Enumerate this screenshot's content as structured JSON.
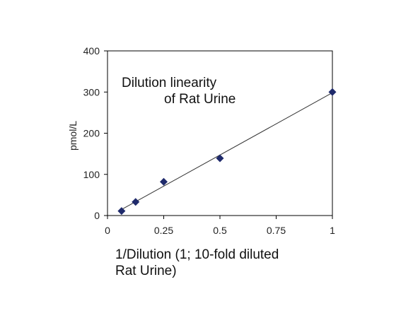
{
  "chart_data": {
    "type": "scatter",
    "title": [
      "Dilution linearity",
      "of Rat Urine"
    ],
    "xlabel": [
      "1/Dilution (1; 10-fold diluted",
      "Rat Urine)"
    ],
    "ylabel": "pmol/L",
    "xlim": [
      0,
      1
    ],
    "ylim": [
      0,
      400
    ],
    "xticks": [
      0,
      0.25,
      0.5,
      0.75,
      1
    ],
    "yticks": [
      0,
      100,
      200,
      300,
      400
    ],
    "xtick_labels": [
      "0",
      "0.25",
      "0.5",
      "0.75",
      "1"
    ],
    "ytick_labels": [
      "0",
      "100",
      "200",
      "300",
      "400"
    ],
    "grid": false,
    "legend": "none",
    "marker": "diamond",
    "marker_color": "#1f2a6b",
    "trendline": "linear",
    "trendline_color": "#333333",
    "series": [
      {
        "x": [
          0.0625,
          0.125,
          0.25,
          0.5,
          1
        ],
        "y": [
          11,
          33,
          82,
          139,
          300
        ]
      }
    ]
  }
}
